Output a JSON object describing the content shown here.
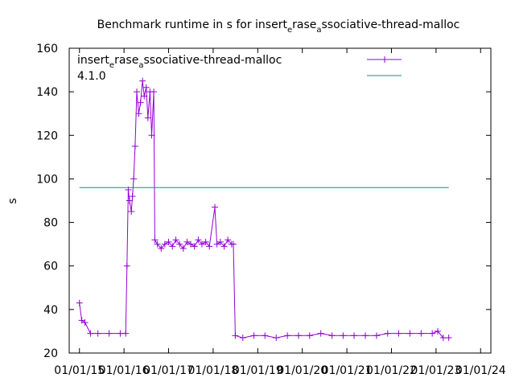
{
  "chart_data": {
    "type": "line",
    "title": "Benchmark runtime in s for insert",
    "title_sub_e": "e",
    "title_mid": "rase",
    "title_sub_a": "a",
    "title_end": "ssociative-thread-malloc",
    "xlabel": "",
    "ylabel": "s",
    "ylim": [
      20,
      160
    ],
    "yticks": [
      "20",
      "40",
      "60",
      "80",
      "100",
      "120",
      "140",
      "160"
    ],
    "xticks": [
      "01/01/15",
      "01/01/16",
      "01/01/17",
      "01/01/18",
      "01/01/19",
      "01/01/20",
      "01/01/21",
      "01/01/22",
      "01/01/23",
      "01/01/24"
    ],
    "grid": false,
    "legend_position": "top-right",
    "legend_text": {
      "line1_a": "insert",
      "line1_sub_e": "e",
      "line1_b": "rase",
      "line1_sub_a": "a",
      "line1_c": "ssociative-thread-malloc",
      "line2": "4.1.0"
    },
    "series": [
      {
        "color": "#9400d3",
        "marker": "plus",
        "x": [
          "2015-01-01",
          "2015-01-20",
          "2015-02-15",
          "2015-04-01",
          "2015-06-01",
          "2015-09-01",
          "2015-12-01",
          "2016-01-15",
          "2016-01-25",
          "2016-02-05",
          "2016-02-15",
          "2016-03-01",
          "2016-03-10",
          "2016-03-20",
          "2016-04-01",
          "2016-04-15",
          "2016-05-01",
          "2016-05-15",
          "2016-06-01",
          "2016-06-15",
          "2016-07-01",
          "2016-07-15",
          "2016-08-01",
          "2016-08-15",
          "2016-09-01",
          "2016-09-10",
          "2016-10-01",
          "2016-11-01",
          "2016-12-01",
          "2017-01-01",
          "2017-02-01",
          "2017-03-01",
          "2017-04-01",
          "2017-05-01",
          "2017-06-01",
          "2017-07-01",
          "2017-08-01",
          "2017-09-01",
          "2017-10-01",
          "2017-11-01",
          "2017-12-01",
          "2018-01-15",
          "2018-02-01",
          "2018-03-01",
          "2018-04-01",
          "2018-05-01",
          "2018-06-01",
          "2018-06-15",
          "2018-07-01",
          "2018-09-01",
          "2018-12-01",
          "2019-03-01",
          "2019-06-01",
          "2019-09-01",
          "2019-12-01",
          "2020-03-01",
          "2020-06-01",
          "2020-09-01",
          "2020-12-01",
          "2021-03-01",
          "2021-06-01",
          "2021-09-01",
          "2021-12-01",
          "2022-03-01",
          "2022-06-01",
          "2022-09-01",
          "2022-12-01",
          "2023-01-15",
          "2023-03-01",
          "2023-04-15"
        ],
        "values": [
          43,
          35,
          34,
          29,
          29,
          29,
          29,
          29,
          60,
          95,
          90,
          85,
          92,
          100,
          115,
          140,
          130,
          135,
          145,
          138,
          142,
          128,
          140,
          120,
          140,
          72,
          70,
          68,
          70,
          71,
          69,
          72,
          70,
          68,
          71,
          70,
          69,
          72,
          70,
          71,
          69,
          87,
          70,
          71,
          69,
          72,
          70,
          70,
          28,
          27,
          28,
          28,
          27,
          28,
          28,
          28,
          29,
          28,
          28,
          28,
          28,
          28,
          29,
          29,
          29,
          29,
          29,
          30,
          27,
          27
        ]
      },
      {
        "color": "#009e73",
        "marker": "none",
        "x": [
          "2015-01-01",
          "2023-04-15"
        ],
        "values": [
          96,
          96
        ]
      }
    ]
  }
}
